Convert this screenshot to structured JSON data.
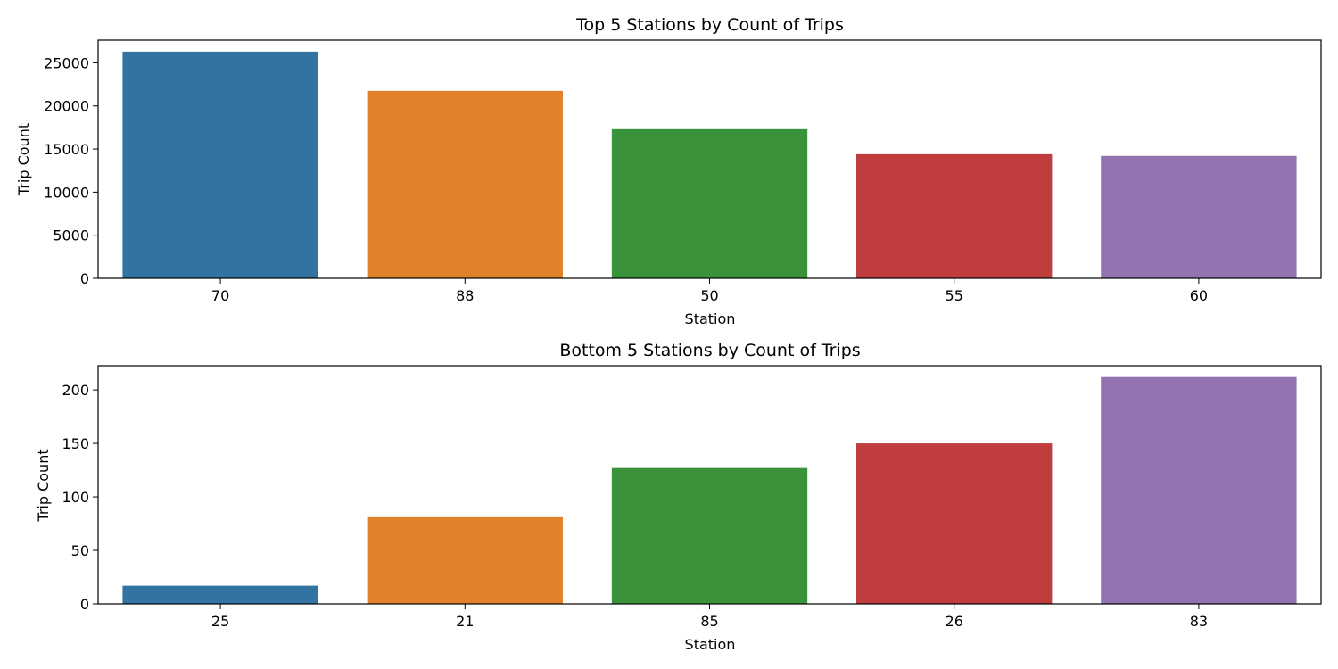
{
  "chart_data": [
    {
      "type": "bar",
      "title": "Top 5 Stations by Count of Trips",
      "xlabel": "Station",
      "ylabel": "Trip Count",
      "categories": [
        "70",
        "88",
        "50",
        "55",
        "60"
      ],
      "values": [
        26300,
        21750,
        17300,
        14400,
        14200
      ],
      "ylim": [
        0,
        27631
      ],
      "yticks": [
        0,
        5000,
        10000,
        15000,
        20000,
        25000
      ],
      "colors": [
        "#3274a1",
        "#e1812c",
        "#3a923a",
        "#c03d3e",
        "#9372b2"
      ],
      "grid": false,
      "legend": "none"
    },
    {
      "type": "bar",
      "title": "Bottom 5 Stations by Count of Trips",
      "xlabel": "Station",
      "ylabel": "Trip Count",
      "categories": [
        "25",
        "21",
        "85",
        "26",
        "83"
      ],
      "values": [
        17,
        81,
        127,
        150,
        212
      ],
      "ylim": [
        0,
        222.6
      ],
      "yticks": [
        0,
        50,
        100,
        150,
        200
      ],
      "colors": [
        "#3274a1",
        "#e1812c",
        "#3a923a",
        "#c03d3e",
        "#9372b2"
      ],
      "grid": false,
      "legend": "none"
    }
  ]
}
